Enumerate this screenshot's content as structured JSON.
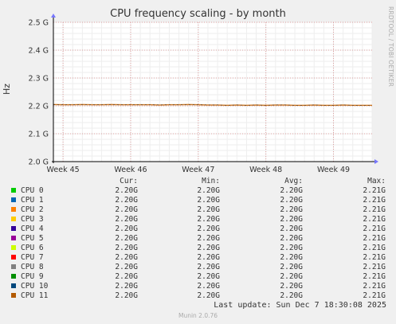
{
  "chart_data": {
    "type": "line",
    "title": "CPU frequency scaling - by month",
    "ylabel": "Hz",
    "side_text": "RRDTOOL / TOBI OETIKER",
    "ylim": [
      2000000000,
      2500000000
    ],
    "yticks": [
      {
        "value": 2500000000,
        "label": "2.5 G"
      },
      {
        "value": 2400000000,
        "label": "2.4 G"
      },
      {
        "value": 2300000000,
        "label": "2.3 G"
      },
      {
        "value": 2200000000,
        "label": "2.2 G"
      },
      {
        "value": 2100000000,
        "label": "2.1 G"
      },
      {
        "value": 2000000000,
        "label": "2.0 G"
      }
    ],
    "xlim": [
      0,
      33
    ],
    "xticks": [
      {
        "value": 1,
        "label": "Week 45"
      },
      {
        "value": 8,
        "label": "Week 46"
      },
      {
        "value": 15,
        "label": "Week 47"
      },
      {
        "value": 22,
        "label": "Week 48"
      },
      {
        "value": 29,
        "label": "Week 49"
      }
    ],
    "grid": true,
    "series_color": "#cc7722",
    "series_values": [
      2205000000,
      2204000000,
      2204000000,
      2205000000,
      2204000000,
      2204000000,
      2205000000,
      2204000000,
      2204000000,
      2204000000,
      2204000000,
      2203000000,
      2204000000,
      2204000000,
      2205000000,
      2204000000,
      2203000000,
      2203000000,
      2202000000,
      2203000000,
      2202000000,
      2203000000,
      2202000000,
      2203000000,
      2203000000,
      2202000000,
      2202000000,
      2203000000,
      2202000000,
      2202000000,
      2203000000,
      2202000000,
      2202000000,
      2202000000
    ]
  },
  "legend": {
    "headers": {
      "cur": "Cur:",
      "min": "Min:",
      "avg": "Avg:",
      "max": "Max:"
    },
    "rows": [
      {
        "name": "CPU 0",
        "color": "#00cc00",
        "cur": "2.20G",
        "min": "2.20G",
        "avg": "2.20G",
        "max": "2.21G"
      },
      {
        "name": "CPU 1",
        "color": "#0066b3",
        "cur": "2.20G",
        "min": "2.20G",
        "avg": "2.20G",
        "max": "2.21G"
      },
      {
        "name": "CPU 2",
        "color": "#ff8000",
        "cur": "2.20G",
        "min": "2.20G",
        "avg": "2.20G",
        "max": "2.21G"
      },
      {
        "name": "CPU 3",
        "color": "#ffcc00",
        "cur": "2.20G",
        "min": "2.20G",
        "avg": "2.20G",
        "max": "2.21G"
      },
      {
        "name": "CPU 4",
        "color": "#330099",
        "cur": "2.20G",
        "min": "2.20G",
        "avg": "2.20G",
        "max": "2.21G"
      },
      {
        "name": "CPU 5",
        "color": "#990099",
        "cur": "2.20G",
        "min": "2.20G",
        "avg": "2.20G",
        "max": "2.21G"
      },
      {
        "name": "CPU 6",
        "color": "#ccff00",
        "cur": "2.20G",
        "min": "2.20G",
        "avg": "2.20G",
        "max": "2.21G"
      },
      {
        "name": "CPU 7",
        "color": "#ff0000",
        "cur": "2.20G",
        "min": "2.20G",
        "avg": "2.20G",
        "max": "2.21G"
      },
      {
        "name": "CPU 8",
        "color": "#808080",
        "cur": "2.20G",
        "min": "2.20G",
        "avg": "2.20G",
        "max": "2.21G"
      },
      {
        "name": "CPU 9",
        "color": "#008f00",
        "cur": "2.20G",
        "min": "2.20G",
        "avg": "2.20G",
        "max": "2.21G"
      },
      {
        "name": "CPU 10",
        "color": "#00487d",
        "cur": "2.20G",
        "min": "2.20G",
        "avg": "2.20G",
        "max": "2.21G"
      },
      {
        "name": "CPU 11",
        "color": "#b35a00",
        "cur": "2.20G",
        "min": "2.20G",
        "avg": "2.20G",
        "max": "2.21G"
      }
    ]
  },
  "last_update": "Last update: Sun Dec  7 18:30:08 2025",
  "footer": "Munin 2.0.76"
}
